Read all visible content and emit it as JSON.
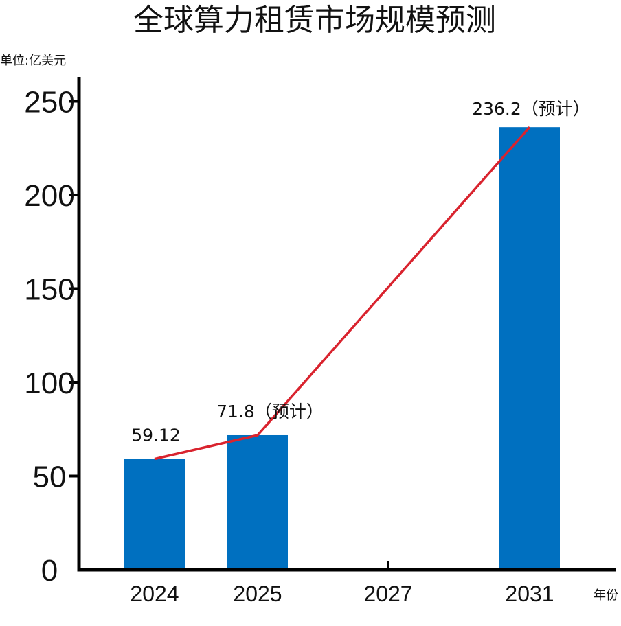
{
  "chart_data": {
    "type": "bar",
    "title": "全球算力租赁市场规模预测",
    "unit_label": "单位:亿美元",
    "x_axis_label": "年份",
    "ylim": [
      0,
      250
    ],
    "y_ticks": [
      0,
      50,
      100,
      150,
      200,
      250
    ],
    "categories": [
      "2024",
      "2025",
      "2027",
      "2031"
    ],
    "values": [
      59.12,
      71.8,
      null,
      236.2
    ],
    "data_labels": [
      "59.12",
      "71.8（预计）",
      "",
      "236.2（预计）"
    ],
    "bar_color": "#0070C0",
    "line_color": "#D9232E",
    "trend_line": true
  }
}
